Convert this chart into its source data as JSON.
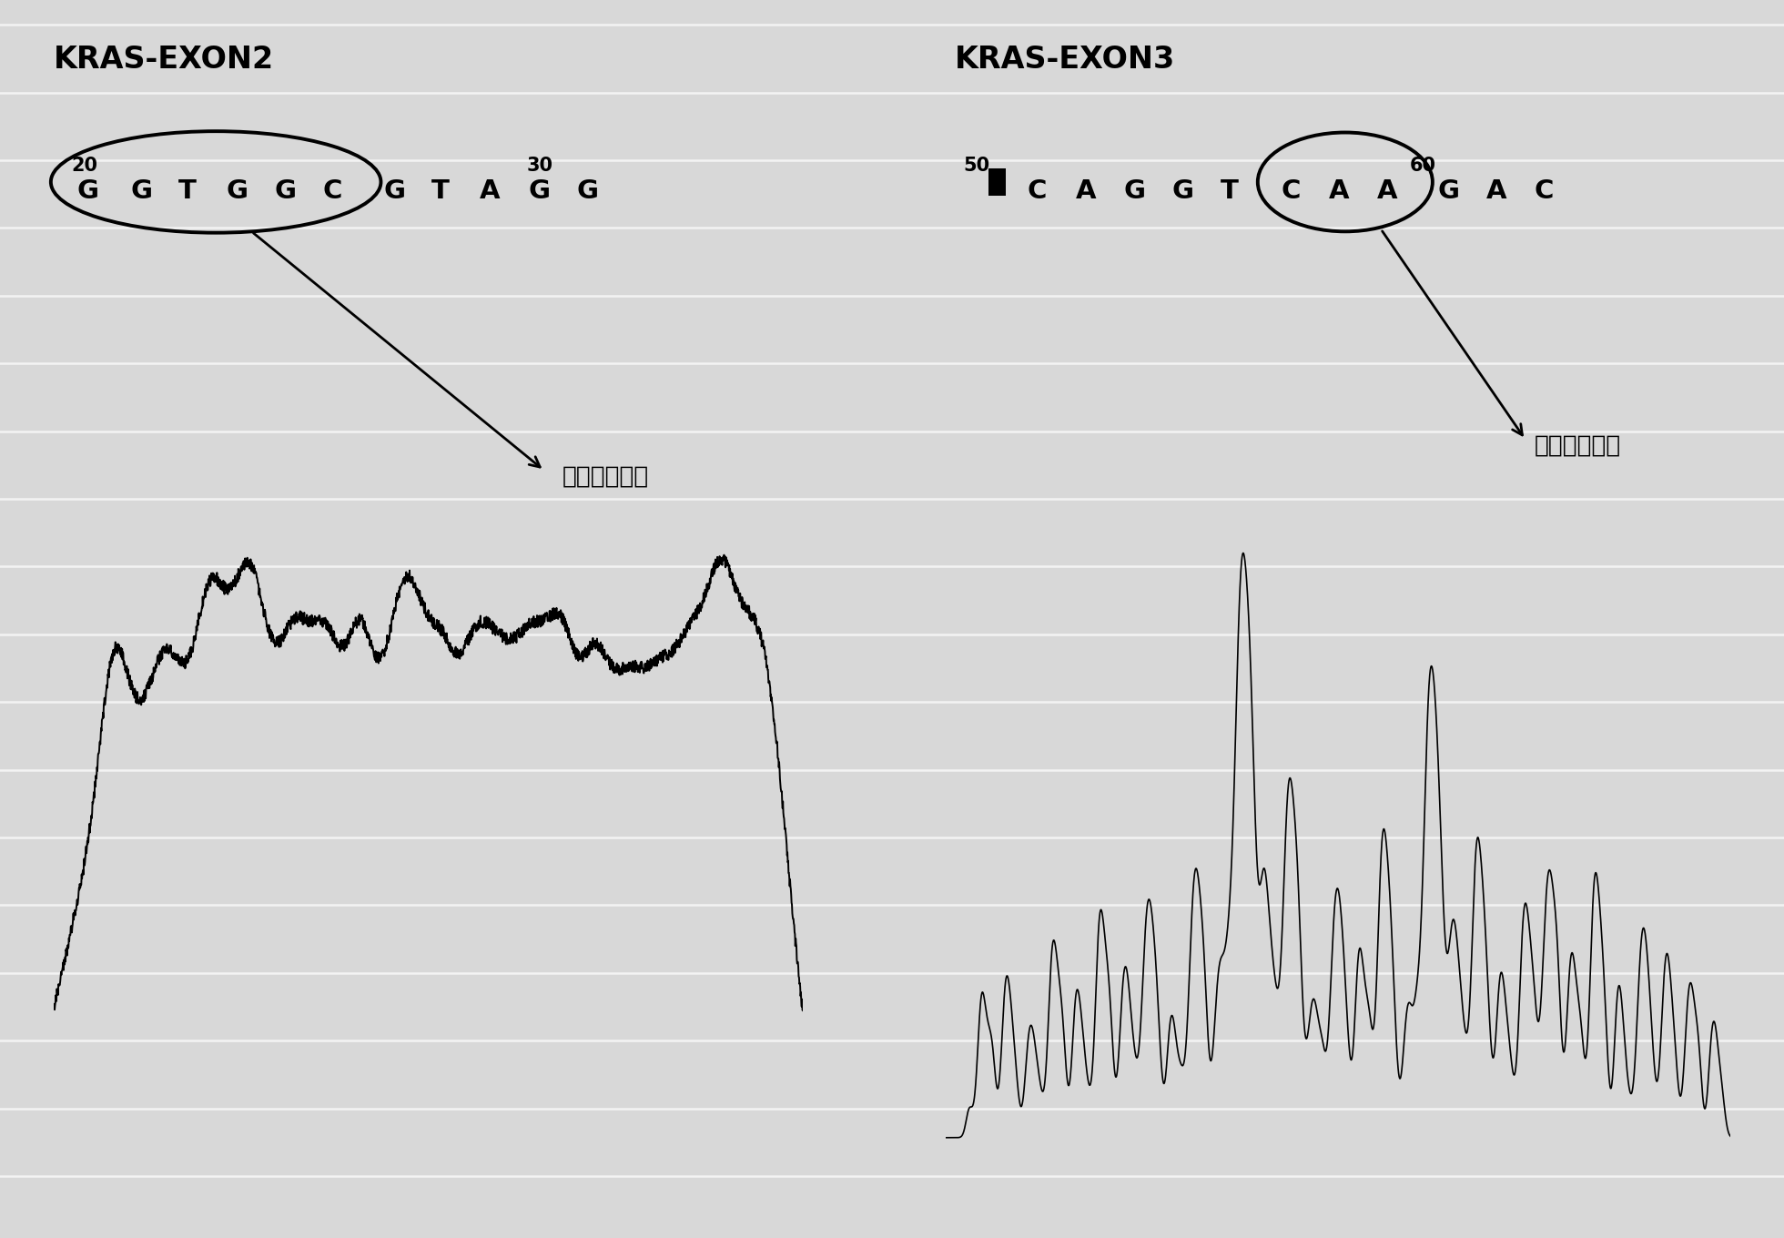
{
  "bg_color": "#d8d8d8",
  "line_color": "#c8c8c8",
  "left_title": "KRAS-EXON2",
  "right_title": "KRAS-EXON3",
  "left_annotation": "热点突变区域",
  "right_annotation": "热点突变区域",
  "left_letters": [
    "G",
    "G",
    "T",
    "G",
    "G",
    "C",
    "G",
    "T",
    "A",
    "G",
    "G"
  ],
  "right_letters": [
    "C",
    "A",
    "G",
    "G",
    "T",
    "C",
    "A",
    "A",
    "G",
    "A",
    "C"
  ],
  "left_num_start": "20",
  "left_num_end": "30",
  "right_num_start": "50",
  "right_num_end": "60"
}
